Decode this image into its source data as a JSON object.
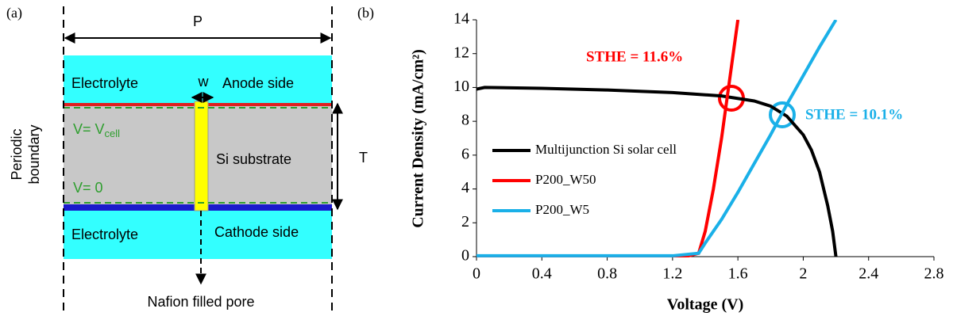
{
  "panel_a": {
    "label": "(a)",
    "period": "P",
    "width": "w",
    "electrolyte_top": "Electrolyte",
    "anode": "Anode side",
    "v_cell": "V= V",
    "v_cell_sub": "cell",
    "substrate": "Si substrate",
    "thickness": "T",
    "v_zero": "V= 0",
    "electrolyte_bottom": "Electrolyte",
    "cathode": "Cathode side",
    "periodic_boundary": [
      "Periodic",
      "boundary"
    ],
    "pore": "Nafion filled pore"
  },
  "chart_data": {
    "type": "line",
    "panel_label": "(b)",
    "xlabel": "Voltage (V)",
    "ylabel": "Current Density (mA/cm²)",
    "xlim": [
      0,
      2.8
    ],
    "xticks": [
      0,
      0.4,
      0.8,
      1.2,
      1.6,
      2,
      2.4,
      2.8
    ],
    "ylim": [
      0,
      14
    ],
    "yticks": [
      0,
      2,
      4,
      6,
      8,
      10,
      12,
      14
    ],
    "annotations": [
      "STHE = 11.6%",
      "STHE = 10.1%"
    ],
    "series": [
      {
        "name": "Multijunction Si solar cell",
        "color": "#000000",
        "x": [
          0,
          0.05,
          0.4,
          0.8,
          1.2,
          1.5,
          1.7,
          1.8,
          1.9,
          2.0,
          2.05,
          2.1,
          2.15,
          2.18,
          2.2
        ],
        "values": [
          9.9,
          10,
          9.95,
          9.85,
          9.7,
          9.5,
          9.2,
          8.9,
          8.3,
          7.2,
          6.3,
          5,
          3,
          1.5,
          0
        ]
      },
      {
        "name": "P200_W50",
        "color": "#ff0000",
        "x": [
          0,
          1,
          1.3,
          1.36,
          1.4,
          1.45,
          1.5,
          1.55,
          1.6
        ],
        "values": [
          0,
          0,
          0.05,
          0.2,
          1.5,
          4,
          7,
          10.5,
          14
        ]
      },
      {
        "name": "P200_W5",
        "color": "#1ab0e8",
        "x": [
          0,
          1.2,
          1.36,
          1.4,
          1.5,
          1.6,
          1.7,
          1.8,
          1.9,
          2.0,
          2.1,
          2.2
        ],
        "values": [
          0.05,
          0.05,
          0.2,
          0.8,
          2.2,
          3.8,
          5.5,
          7.2,
          9,
          10.7,
          12.4,
          14
        ]
      }
    ]
  }
}
